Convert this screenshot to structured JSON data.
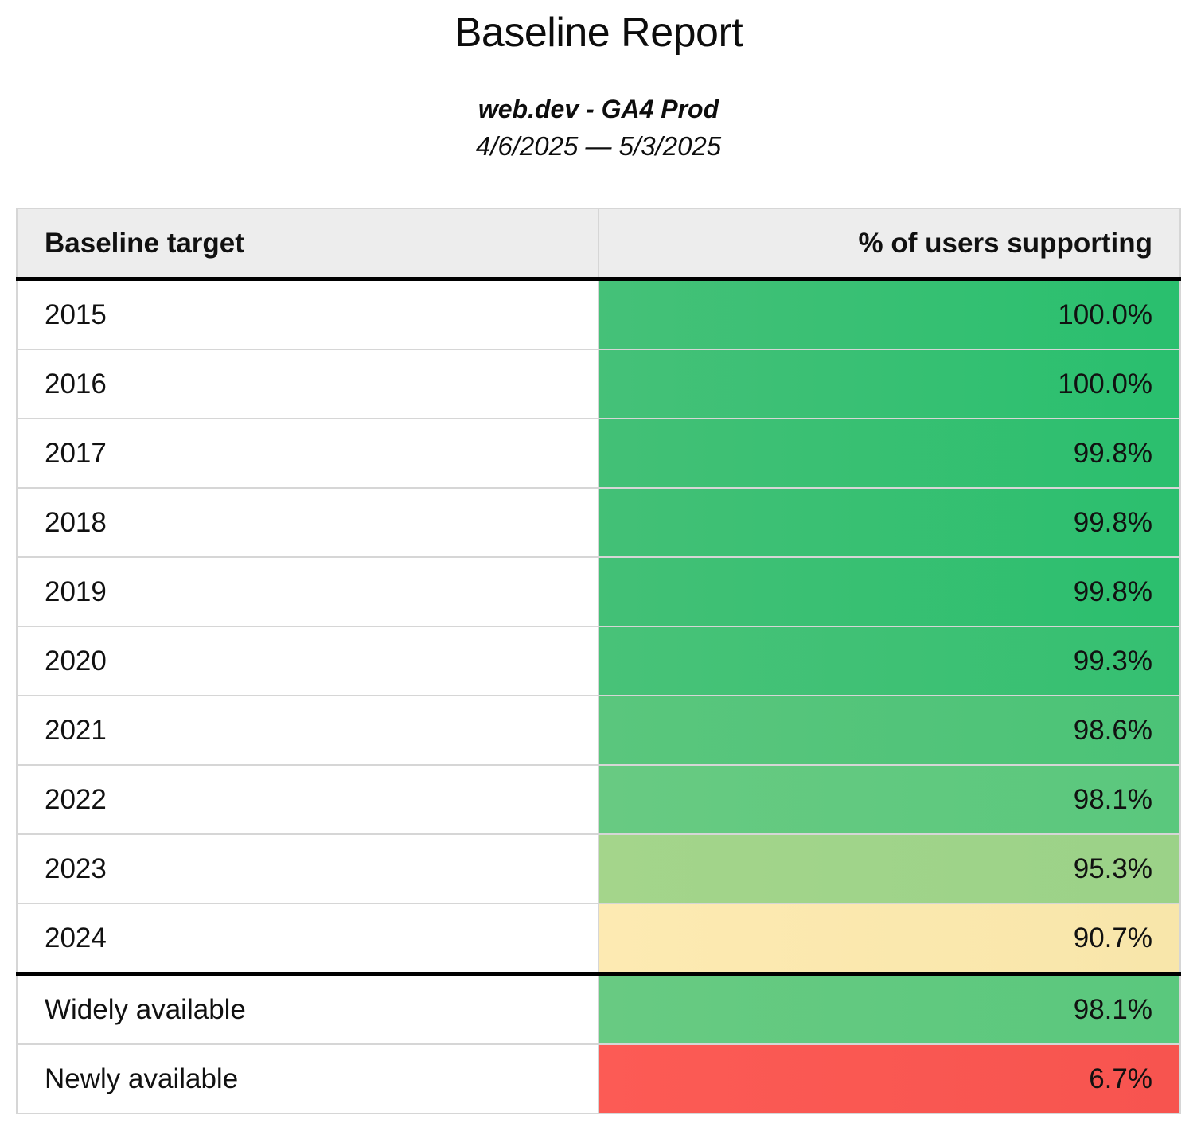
{
  "page": {
    "title": "Baseline Report",
    "subtitle": "web.dev - GA4 Prod",
    "date_range": "4/6/2025 — 5/3/2025",
    "background_color": "#ffffff"
  },
  "table": {
    "columns": [
      "Baseline target",
      "% of users supporting"
    ],
    "header_background": "#ededed",
    "divider_color": "#d6d6d6",
    "section_border_color": "#000000",
    "rows": [
      {
        "target": "2015",
        "value": "100.0%",
        "color_left": "#45c178",
        "color_right": "#29bf6e",
        "section_break": false
      },
      {
        "target": "2016",
        "value": "100.0%",
        "color_left": "#45c178",
        "color_right": "#29bf6e",
        "section_break": false
      },
      {
        "target": "2017",
        "value": "99.8%",
        "color_left": "#43c076",
        "color_right": "#2bbf6e",
        "section_break": false
      },
      {
        "target": "2018",
        "value": "99.8%",
        "color_left": "#43c076",
        "color_right": "#2bbf6e",
        "section_break": false
      },
      {
        "target": "2019",
        "value": "99.8%",
        "color_left": "#43c076",
        "color_right": "#2bbf6e",
        "section_break": false
      },
      {
        "target": "2020",
        "value": "99.3%",
        "color_left": "#48c278",
        "color_right": "#35c071",
        "section_break": false
      },
      {
        "target": "2021",
        "value": "98.6%",
        "color_left": "#5ac67d",
        "color_right": "#4bc377",
        "section_break": false
      },
      {
        "target": "2022",
        "value": "98.1%",
        "color_left": "#68ca82",
        "color_right": "#5ac87d",
        "section_break": false
      },
      {
        "target": "2023",
        "value": "95.3%",
        "color_left": "#a4d58b",
        "color_right": "#9bd288",
        "section_break": false
      },
      {
        "target": "2024",
        "value": "90.7%",
        "color_left": "#fdeab2",
        "color_right": "#f8e6aa",
        "section_break": false
      },
      {
        "target": "Widely available",
        "value": "98.1%",
        "color_left": "#68ca82",
        "color_right": "#5ac87d",
        "section_break": true
      },
      {
        "target": "Newly available",
        "value": "6.7%",
        "color_left": "#fc5b55",
        "color_right": "#f7544f",
        "section_break": false
      }
    ]
  },
  "chart_data": {
    "type": "table",
    "title": "Baseline Report",
    "subtitle": "web.dev - GA4 Prod",
    "date_range": "4/6/2025 — 5/3/2025",
    "columns": [
      "Baseline target",
      "% of users supporting"
    ],
    "categories": [
      "2015",
      "2016",
      "2017",
      "2018",
      "2019",
      "2020",
      "2021",
      "2022",
      "2023",
      "2024",
      "Widely available",
      "Newly available"
    ],
    "values": [
      100.0,
      100.0,
      99.8,
      99.8,
      99.8,
      99.3,
      98.6,
      98.1,
      95.3,
      90.7,
      98.1,
      6.7
    ],
    "value_unit": "percent",
    "layout_hints": {
      "value_column_alignment": "right",
      "heatmap": "value cells color-coded green (high) through yellow to red (low)",
      "section_separator_after_row": "2024"
    }
  }
}
